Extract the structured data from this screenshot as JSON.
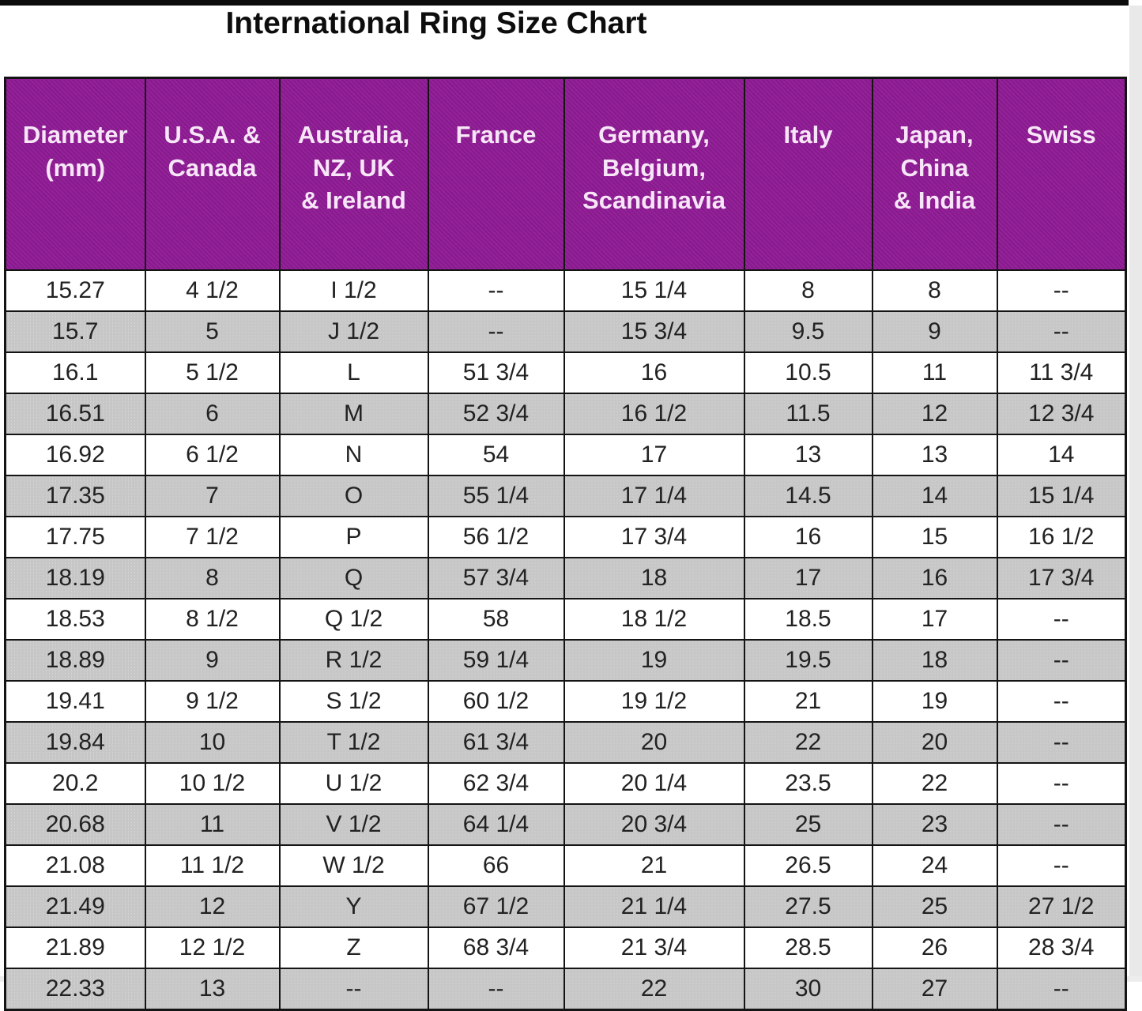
{
  "title": "International Ring Size Chart",
  "colors": {
    "header_bg": "#911c96",
    "header_text": "#f7e6f7",
    "alt_row_bg": "#c7c7c7",
    "row_bg": "#ffffff",
    "border": "#141414",
    "text": "#222222"
  },
  "chart_data": {
    "type": "table",
    "title": "International Ring Size Chart",
    "columns": [
      "Diameter\n(mm)",
      "U.S.A. &\nCanada",
      "Australia,\nNZ, UK\n& Ireland",
      "France",
      "Germany,\nBelgium,\nScandinavia",
      "Italy",
      "Japan,\nChina\n& India",
      "Swiss"
    ],
    "rows": [
      [
        "15.27",
        "4 1/2",
        "I 1/2",
        "--",
        "15 1/4",
        "8",
        "8",
        "--"
      ],
      [
        "15.7",
        "5",
        "J 1/2",
        "--",
        "15 3/4",
        "9.5",
        "9",
        "--"
      ],
      [
        "16.1",
        "5 1/2",
        "L",
        "51 3/4",
        "16",
        "10.5",
        "11",
        "11 3/4"
      ],
      [
        "16.51",
        "6",
        "M",
        "52 3/4",
        "16 1/2",
        "11.5",
        "12",
        "12 3/4"
      ],
      [
        "16.92",
        "6 1/2",
        "N",
        "54",
        "17",
        "13",
        "13",
        "14"
      ],
      [
        "17.35",
        "7",
        "O",
        "55 1/4",
        "17 1/4",
        "14.5",
        "14",
        "15 1/4"
      ],
      [
        "17.75",
        "7 1/2",
        "P",
        "56 1/2",
        "17 3/4",
        "16",
        "15",
        "16 1/2"
      ],
      [
        "18.19",
        "8",
        "Q",
        "57 3/4",
        "18",
        "17",
        "16",
        "17 3/4"
      ],
      [
        "18.53",
        "8 1/2",
        "Q 1/2",
        "58",
        "18 1/2",
        "18.5",
        "17",
        "--"
      ],
      [
        "18.89",
        "9",
        "R 1/2",
        "59 1/4",
        "19",
        "19.5",
        "18",
        "--"
      ],
      [
        "19.41",
        "9 1/2",
        "S 1/2",
        "60 1/2",
        "19 1/2",
        "21",
        "19",
        "--"
      ],
      [
        "19.84",
        "10",
        "T 1/2",
        "61 3/4",
        "20",
        "22",
        "20",
        "--"
      ],
      [
        "20.2",
        "10 1/2",
        "U 1/2",
        "62 3/4",
        "20 1/4",
        "23.5",
        "22",
        "--"
      ],
      [
        "20.68",
        "11",
        "V 1/2",
        "64 1/4",
        "20 3/4",
        "25",
        "23",
        "--"
      ],
      [
        "21.08",
        "11 1/2",
        "W 1/2",
        "66",
        "21",
        "26.5",
        "24",
        "--"
      ],
      [
        "21.49",
        "12",
        "Y",
        "67 1/2",
        "21 1/4",
        "27.5",
        "25",
        "27 1/2"
      ],
      [
        "21.89",
        "12 1/2",
        "Z",
        "68 3/4",
        "21 3/4",
        "28.5",
        "26",
        "28 3/4"
      ],
      [
        "22.33",
        "13",
        "--",
        "--",
        "22",
        "30",
        "27",
        "--"
      ]
    ]
  }
}
